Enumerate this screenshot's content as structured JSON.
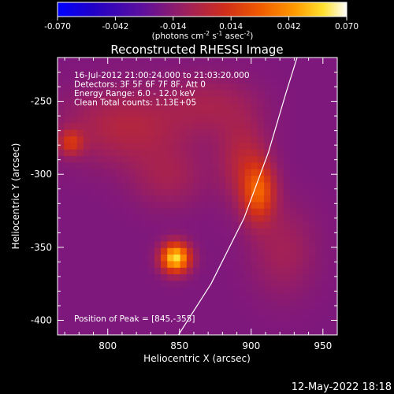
{
  "colorbar": {
    "tick_labels": [
      "-0.070",
      "-0.042",
      "-0.014",
      "0.014",
      "0.042",
      "0.070"
    ],
    "tick_values": [
      -0.07,
      -0.042,
      -0.014,
      0.014,
      0.042,
      0.07
    ],
    "range": [
      -0.07,
      0.07
    ],
    "unit_main": "(photons cm",
    "unit_sup1": "-2",
    "unit_mid": " s",
    "unit_sup2": "-1",
    "unit_end": " asec",
    "unit_sup3": "-2",
    "unit_close": ")"
  },
  "chart_data": {
    "type": "heatmap",
    "title": "Reconstructed RHESSI Image",
    "xlabel": "Heliocentric X (arcsec)",
    "ylabel": "Heliocentric Y (arcsec)",
    "xlim": [
      765,
      960
    ],
    "ylim": [
      -410,
      -220
    ],
    "x_ticks": [
      800,
      850,
      900,
      950
    ],
    "x_tick_labels": [
      "800",
      "850",
      "900",
      "950"
    ],
    "y_ticks": [
      -250,
      -300,
      -350,
      -400
    ],
    "y_tick_labels": [
      "-250",
      "-300",
      "-350",
      "-400"
    ],
    "info_lines": [
      "16-Jul-2012 21:00:24.000 to 21:03:20.000",
      "Detectors: 3F 5F 6F 7F 8F, Att 0",
      "Energy Range: 6.0 - 12.0 keV",
      "Clean    Total counts: 1.13E+05"
    ],
    "peak_label": "Position of Peak = [845,-355]",
    "peak": {
      "x": 845,
      "y": -355,
      "value": 0.07
    },
    "sources": [
      {
        "x": 845,
        "y": -355,
        "amp": 0.078,
        "sx": 7,
        "sy": 7
      },
      {
        "x": 772,
        "y": -276,
        "amp": 0.028,
        "sx": 6,
        "sy": 6
      },
      {
        "x": 903,
        "y": -310,
        "amp": 0.042,
        "sx": 8,
        "sy": 14
      },
      {
        "x": 892,
        "y": -288,
        "amp": 0.018,
        "sx": 12,
        "sy": 20
      },
      {
        "x": 810,
        "y": -265,
        "amp": 0.018,
        "sx": 30,
        "sy": 18
      },
      {
        "x": 840,
        "y": -300,
        "amp": 0.012,
        "sx": 18,
        "sy": 15
      },
      {
        "x": 870,
        "y": -250,
        "amp": 0.012,
        "sx": 22,
        "sy": 14
      },
      {
        "x": 920,
        "y": -350,
        "amp": 0.012,
        "sx": 16,
        "sy": 22
      }
    ],
    "limb_curve": [
      {
        "x": 848,
        "y": -412
      },
      {
        "x": 872,
        "y": -375
      },
      {
        "x": 895,
        "y": -330
      },
      {
        "x": 912,
        "y": -285
      },
      {
        "x": 924,
        "y": -245
      },
      {
        "x": 932,
        "y": -220
      }
    ]
  },
  "footer": {
    "timestamp": "12-May-2022 18:18"
  }
}
